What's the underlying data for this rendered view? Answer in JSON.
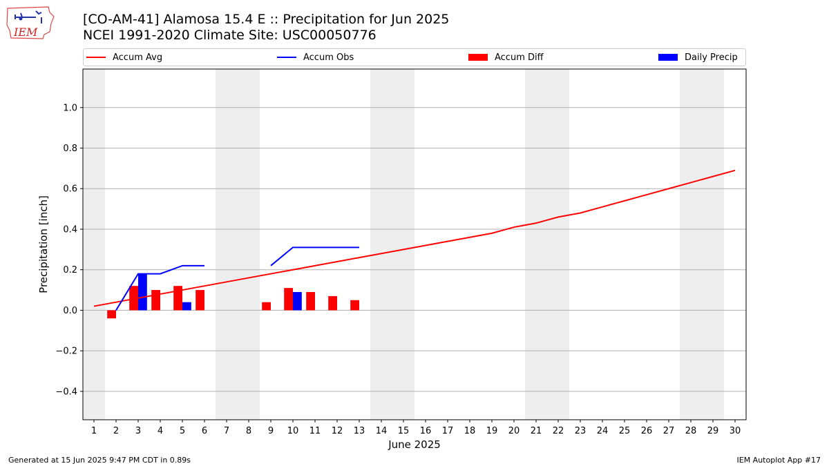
{
  "header": {
    "logo_text": "IEM",
    "title_line1": "[CO-AM-41] Alamosa 15.4 E :: Precipitation for Jun 2025",
    "title_line2": "NCEI 1991-2020 Climate Site: USC00050776"
  },
  "legend": [
    {
      "label": "Accum Avg",
      "color": "#ff0000",
      "kind": "line"
    },
    {
      "label": "Accum Obs",
      "color": "#0000ff",
      "kind": "line"
    },
    {
      "label": "Accum Diff",
      "color": "#ff0000",
      "kind": "box"
    },
    {
      "label": "Daily Precip",
      "color": "#0000ff",
      "kind": "box"
    }
  ],
  "footer": {
    "generated": "Generated at 15 Jun 2025 9:47 PM CDT in 0.89s",
    "app": "IEM Autoplot App #17"
  },
  "chart_data": {
    "type": "bar",
    "xlabel": "June 2025",
    "ylabel": "Precipitation [inch]",
    "ylim": [
      -0.54,
      1.19
    ],
    "yticks": [
      -0.4,
      -0.2,
      0.0,
      0.2,
      0.4,
      0.6,
      0.8,
      1.0
    ],
    "ytick_labels": [
      "−0.4",
      "−0.2",
      "0.0",
      "0.2",
      "0.4",
      "0.6",
      "0.8",
      "1.0"
    ],
    "days": [
      1,
      2,
      3,
      4,
      5,
      6,
      7,
      8,
      9,
      10,
      11,
      12,
      13,
      14,
      15,
      16,
      17,
      18,
      19,
      20,
      21,
      22,
      23,
      24,
      25,
      26,
      27,
      28,
      29,
      30
    ],
    "weekend_days": [
      1,
      7,
      8,
      14,
      15,
      21,
      22,
      28,
      29
    ],
    "grid": "horizontal",
    "accum_avg": [
      0.02,
      0.04,
      0.06,
      0.08,
      0.1,
      0.12,
      0.14,
      0.16,
      0.18,
      0.2,
      0.22,
      0.24,
      0.26,
      0.28,
      0.3,
      0.32,
      0.34,
      0.36,
      0.38,
      0.41,
      0.43,
      0.46,
      0.48,
      0.51,
      0.54,
      0.57,
      0.6,
      0.63,
      0.66,
      0.69
    ],
    "accum_obs_segments": [
      {
        "days": [
          2,
          3,
          4,
          5,
          6
        ],
        "values": [
          0.0,
          0.18,
          0.18,
          0.22,
          0.22
        ]
      },
      {
        "days": [
          9,
          10,
          11,
          12,
          13
        ],
        "values": [
          0.22,
          0.31,
          0.31,
          0.31,
          0.31
        ]
      }
    ],
    "accum_diff": [
      {
        "day": 2,
        "value": -0.04
      },
      {
        "day": 3,
        "value": 0.12
      },
      {
        "day": 4,
        "value": 0.1
      },
      {
        "day": 5,
        "value": 0.12
      },
      {
        "day": 6,
        "value": 0.1
      },
      {
        "day": 9,
        "value": 0.04
      },
      {
        "day": 10,
        "value": 0.11
      },
      {
        "day": 11,
        "value": 0.09
      },
      {
        "day": 12,
        "value": 0.07
      },
      {
        "day": 13,
        "value": 0.05
      }
    ],
    "daily_precip": [
      {
        "day": 3,
        "value": 0.18
      },
      {
        "day": 5,
        "value": 0.04
      },
      {
        "day": 10,
        "value": 0.09
      }
    ],
    "colors": {
      "avg": "#ff0000",
      "obs": "#0000ff",
      "diff": "#ff0000",
      "daily": "#0000ff",
      "weekend": "#eeeeee",
      "grid": "#b0b0b0"
    }
  }
}
